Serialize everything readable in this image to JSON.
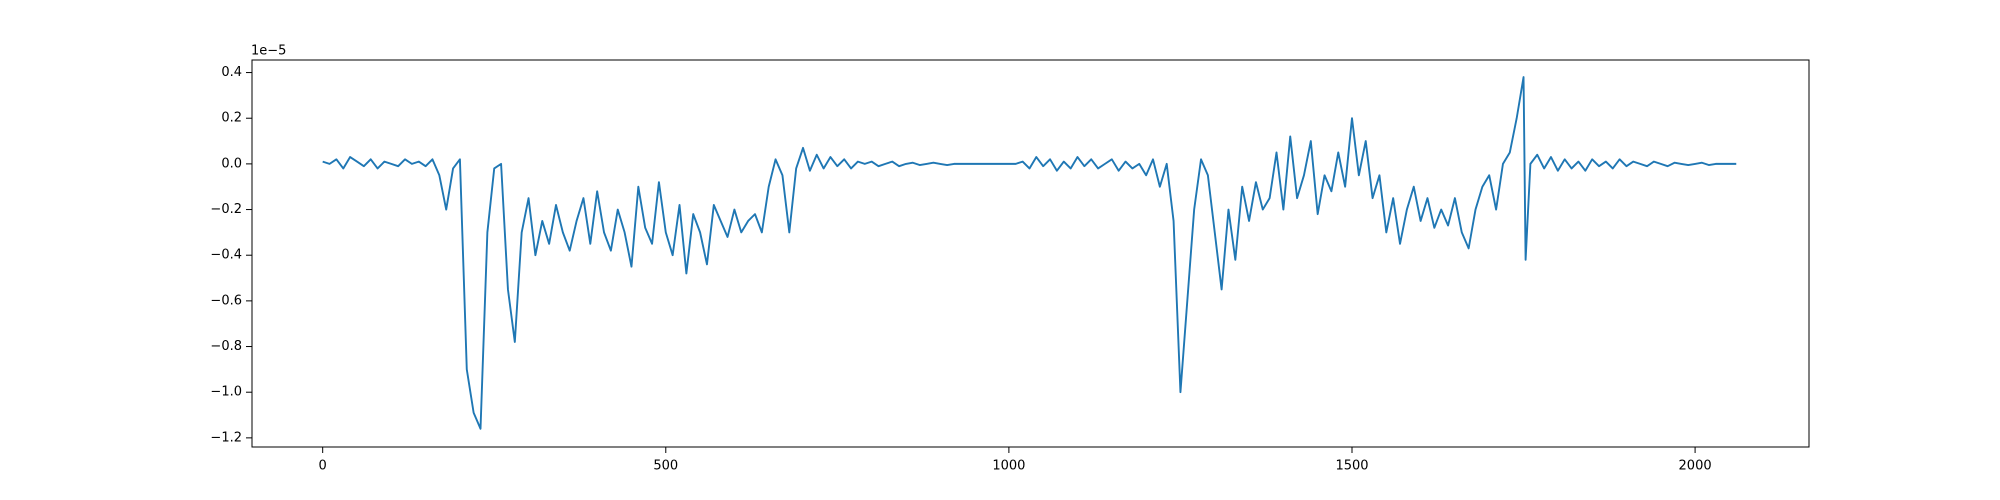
{
  "chart_data": {
    "type": "line",
    "offset_label": "1e−5",
    "color": "#1f77b4",
    "x": [
      0,
      10,
      20,
      30,
      40,
      50,
      60,
      70,
      80,
      90,
      100,
      110,
      120,
      130,
      140,
      150,
      160,
      170,
      180,
      190,
      200,
      210,
      220,
      230,
      240,
      250,
      260,
      270,
      280,
      290,
      300,
      310,
      320,
      330,
      340,
      350,
      360,
      370,
      380,
      390,
      400,
      410,
      420,
      430,
      440,
      450,
      460,
      470,
      480,
      490,
      500,
      510,
      520,
      530,
      540,
      550,
      560,
      570,
      580,
      590,
      600,
      610,
      620,
      630,
      640,
      650,
      660,
      670,
      680,
      690,
      700,
      710,
      720,
      730,
      740,
      750,
      760,
      770,
      780,
      790,
      800,
      810,
      820,
      830,
      840,
      850,
      860,
      870,
      880,
      890,
      900,
      910,
      920,
      930,
      940,
      950,
      960,
      970,
      980,
      990,
      1000,
      1010,
      1020,
      1030,
      1040,
      1050,
      1060,
      1070,
      1080,
      1090,
      1100,
      1110,
      1120,
      1130,
      1140,
      1150,
      1160,
      1170,
      1180,
      1190,
      1200,
      1210,
      1220,
      1230,
      1240,
      1250,
      1260,
      1270,
      1280,
      1290,
      1300,
      1310,
      1320,
      1330,
      1340,
      1350,
      1360,
      1370,
      1380,
      1390,
      1400,
      1410,
      1420,
      1430,
      1440,
      1450,
      1460,
      1470,
      1480,
      1490,
      1500,
      1510,
      1520,
      1530,
      1540,
      1550,
      1560,
      1570,
      1580,
      1590,
      1600,
      1610,
      1620,
      1630,
      1640,
      1650,
      1660,
      1670,
      1680,
      1690,
      1700,
      1710,
      1720,
      1730,
      1740,
      1750,
      1753,
      1760,
      1770,
      1780,
      1790,
      1800,
      1810,
      1820,
      1830,
      1840,
      1850,
      1860,
      1870,
      1880,
      1890,
      1900,
      1910,
      1920,
      1930,
      1940,
      1950,
      1960,
      1970,
      1980,
      1990,
      2000,
      2010,
      2020,
      2030,
      2040,
      2050,
      2060
    ],
    "values": [
      0.01,
      0,
      0.02,
      -0.02,
      0.03,
      0.01,
      -0.01,
      0.02,
      -0.02,
      0.01,
      0,
      -0.01,
      0.02,
      0,
      0.01,
      -0.01,
      0.02,
      -0.05,
      -0.2,
      -0.02,
      0.02,
      -0.9,
      -1.09,
      -1.16,
      -0.3,
      -0.02,
      0,
      -0.55,
      -0.78,
      -0.3,
      -0.15,
      -0.4,
      -0.25,
      -0.35,
      -0.18,
      -0.3,
      -0.38,
      -0.25,
      -0.15,
      -0.35,
      -0.12,
      -0.3,
      -0.38,
      -0.2,
      -0.3,
      -0.45,
      -0.1,
      -0.28,
      -0.35,
      -0.08,
      -0.3,
      -0.4,
      -0.18,
      -0.48,
      -0.22,
      -0.3,
      -0.44,
      -0.18,
      -0.25,
      -0.32,
      -0.2,
      -0.3,
      -0.25,
      -0.22,
      -0.3,
      -0.1,
      0.02,
      -0.05,
      -0.3,
      -0.02,
      0.07,
      -0.03,
      0.04,
      -0.02,
      0.03,
      -0.01,
      0.02,
      -0.02,
      0.01,
      0,
      0.01,
      -0.01,
      0,
      0.01,
      -0.01,
      0,
      0.005,
      -0.005,
      0,
      0.005,
      0,
      -0.005,
      0,
      0,
      0,
      0,
      0,
      0,
      0,
      0,
      0,
      0,
      0.01,
      -0.02,
      0.03,
      -0.01,
      0.02,
      -0.03,
      0.01,
      -0.02,
      0.03,
      -0.01,
      0.02,
      -0.02,
      0,
      0.02,
      -0.03,
      0.01,
      -0.02,
      0,
      -0.05,
      0.02,
      -0.1,
      0,
      -0.25,
      -1.0,
      -0.6,
      -0.2,
      0.02,
      -0.05,
      -0.3,
      -0.55,
      -0.2,
      -0.42,
      -0.1,
      -0.25,
      -0.08,
      -0.2,
      -0.15,
      0.05,
      -0.2,
      0.12,
      -0.15,
      -0.05,
      0.1,
      -0.22,
      -0.05,
      -0.12,
      0.05,
      -0.1,
      0.2,
      -0.05,
      0.1,
      -0.15,
      -0.05,
      -0.3,
      -0.15,
      -0.35,
      -0.2,
      -0.1,
      -0.25,
      -0.15,
      -0.28,
      -0.2,
      -0.27,
      -0.15,
      -0.3,
      -0.37,
      -0.2,
      -0.1,
      -0.05,
      -0.2,
      0,
      0.05,
      0.2,
      0.38,
      -0.42,
      0,
      0.04,
      -0.02,
      0.03,
      -0.03,
      0.02,
      -0.02,
      0.01,
      -0.03,
      0.02,
      -0.01,
      0.01,
      -0.02,
      0.02,
      -0.01,
      0.01,
      0,
      -0.01,
      0.01,
      0,
      -0.01,
      0.005,
      0,
      -0.005,
      0,
      0.005,
      -0.005,
      0,
      0,
      0,
      0
    ],
    "xlim": [
      -103,
      2166
    ],
    "xticks": [
      0,
      500,
      1000,
      1500,
      2000
    ],
    "ylim": [
      -1.24,
      0.455
    ],
    "yticks": [
      {
        "value": -1.2,
        "label": "−1.2"
      },
      {
        "value": -1.0,
        "label": "−1.0"
      },
      {
        "value": -0.8,
        "label": "−0.8"
      },
      {
        "value": -0.6,
        "label": "−0.6"
      },
      {
        "value": -0.4,
        "label": "−0.4"
      },
      {
        "value": -0.2,
        "label": "−0.2"
      },
      {
        "value": 0.0,
        "label": "0.0"
      },
      0.2,
      0.4
    ]
  }
}
